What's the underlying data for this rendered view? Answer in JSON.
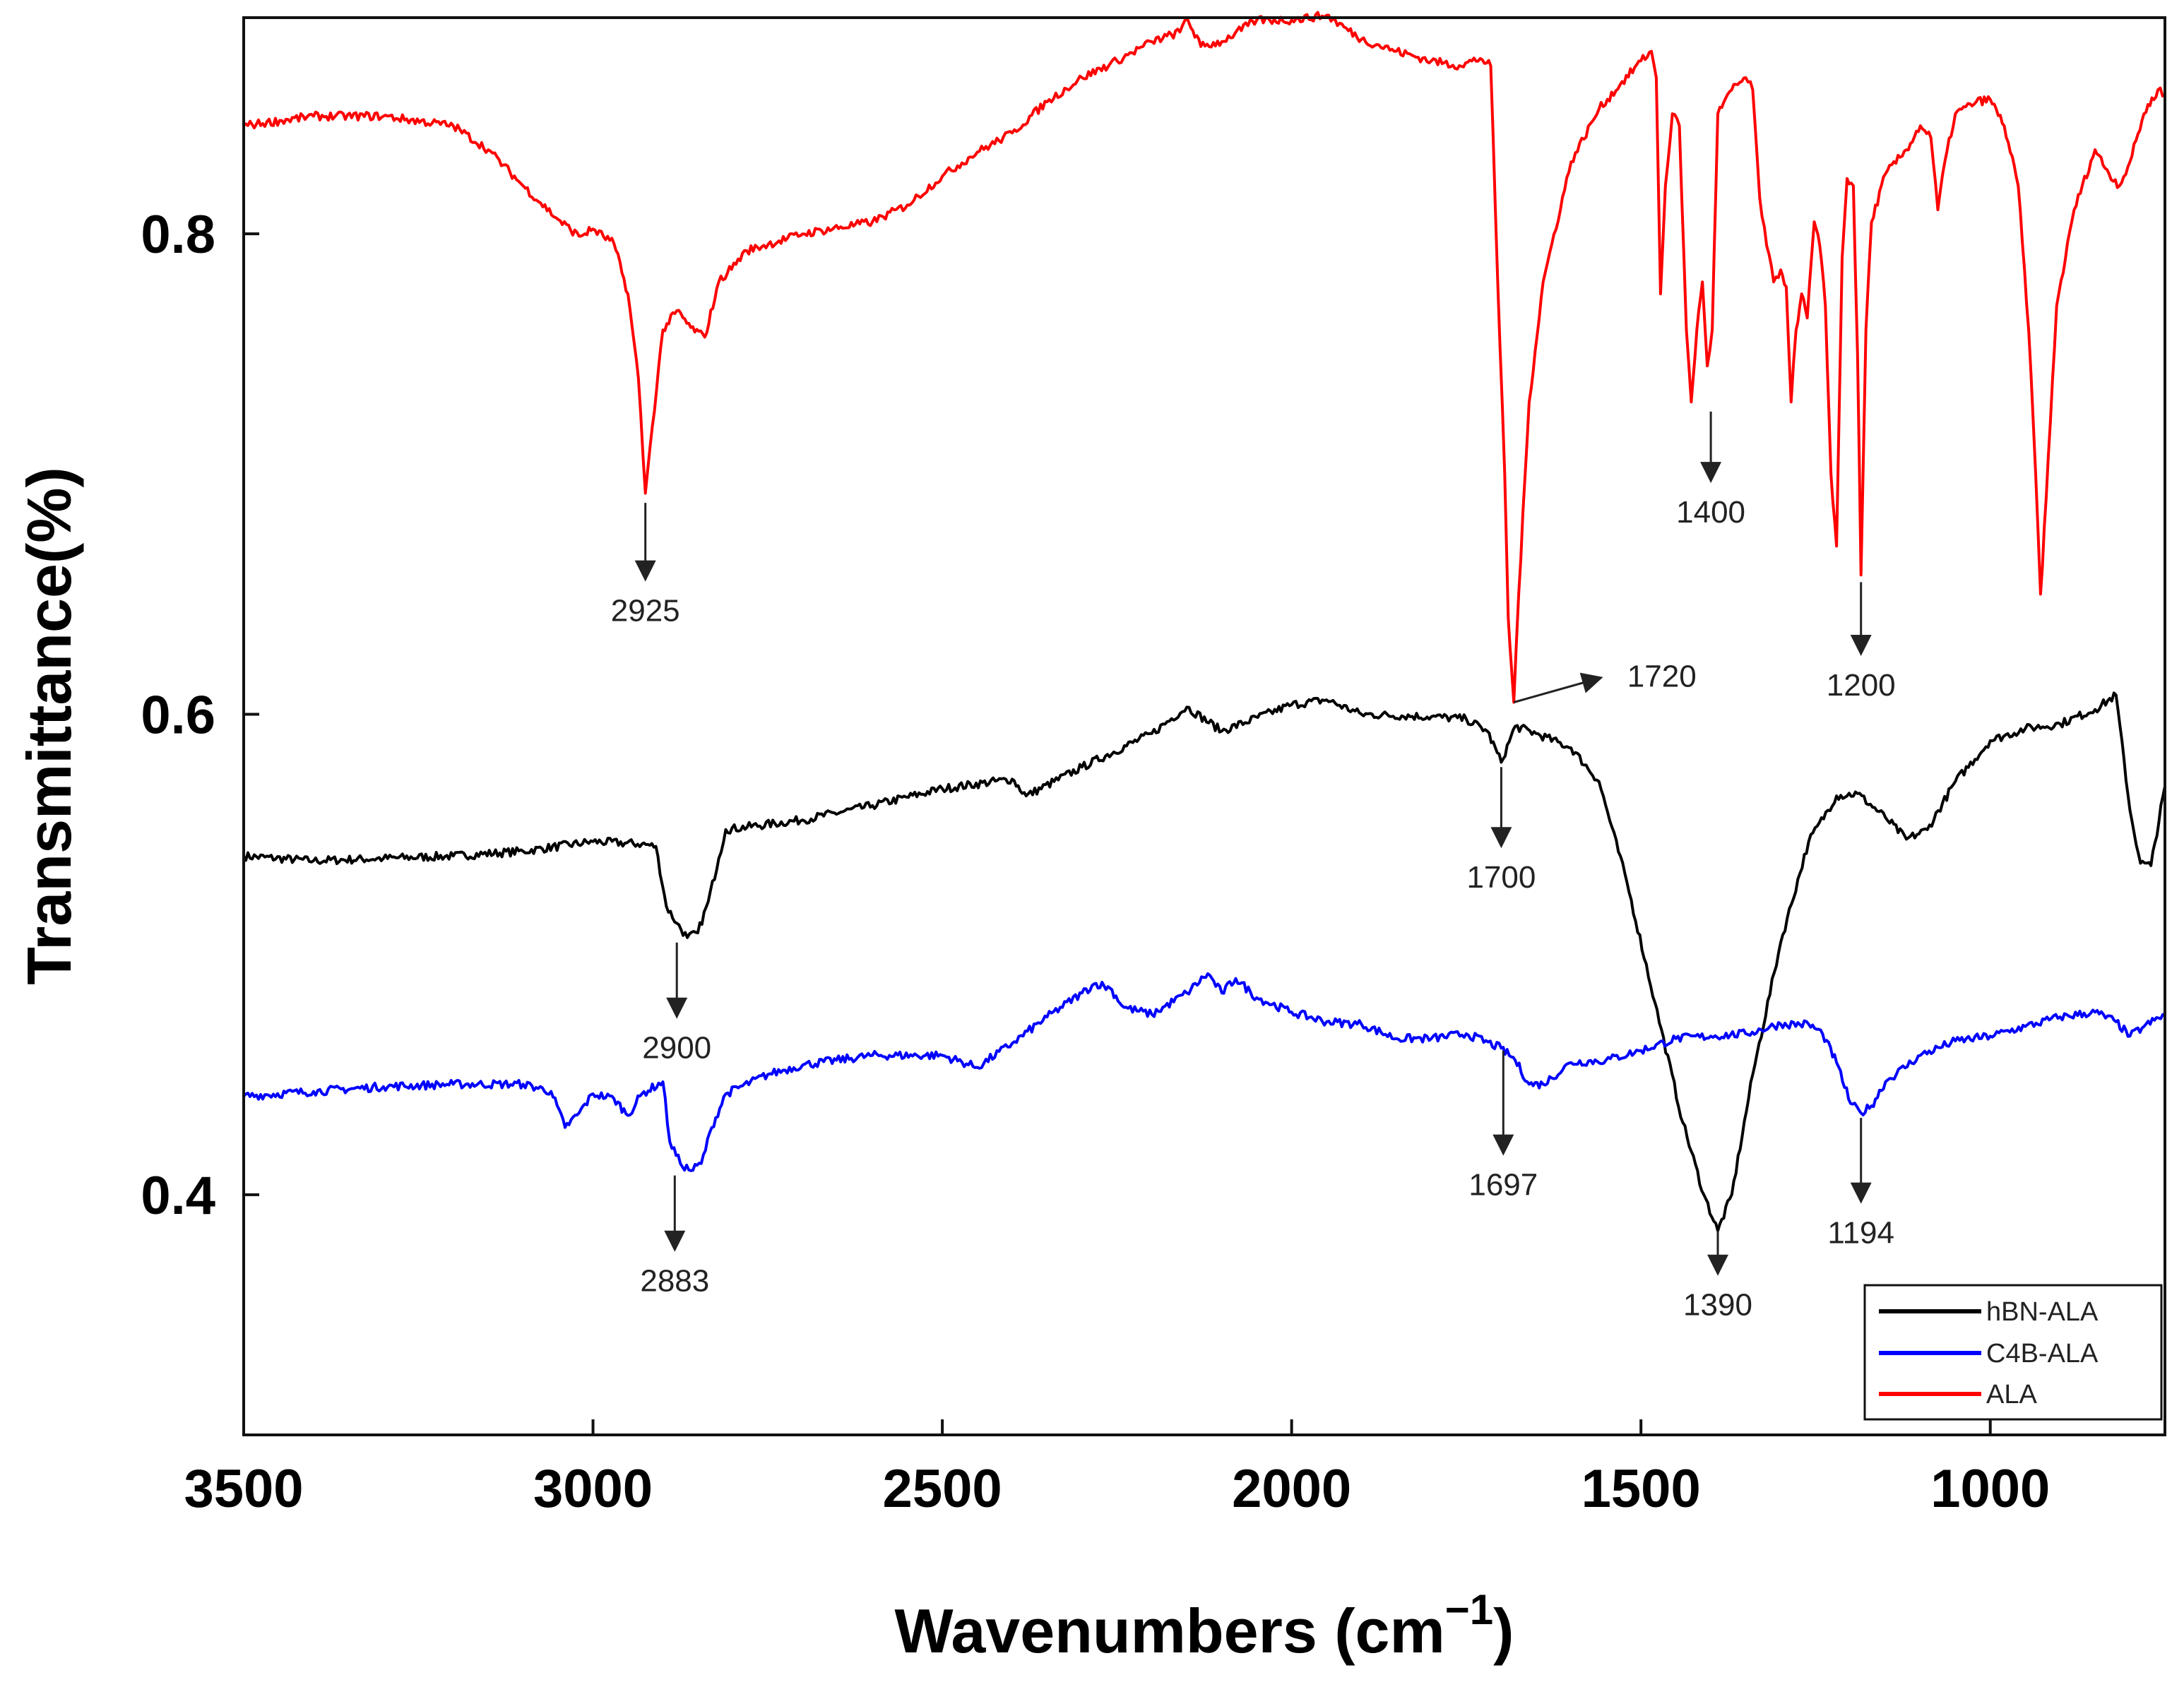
{
  "chart_data": {
    "type": "line",
    "title": "",
    "xlabel": "Wavenumbers (cm",
    "xlabel_superscript": "−1",
    "xlabel_close": ")",
    "ylabel": "Transmittance(%)",
    "xlim": [
      3500,
      750
    ],
    "ylim": [
      0.3,
      0.89
    ],
    "x_ticks": [
      3500,
      3000,
      2500,
      2000,
      1500,
      1000
    ],
    "x_tick_labels": [
      "3500",
      "3000",
      "2500",
      "2000",
      "1500",
      "1000"
    ],
    "y_ticks": [
      0.4,
      0.6,
      0.8
    ],
    "y_tick_labels": [
      "0.4",
      "0.6",
      "0.8"
    ],
    "grid": false,
    "legend_position": "bottom-right",
    "series": [
      {
        "name": "hBN-ALA",
        "color": "#000000",
        "points": [
          [
            3500,
            0.541
          ],
          [
            3400,
            0.539
          ],
          [
            3300,
            0.54
          ],
          [
            3200,
            0.541
          ],
          [
            3100,
            0.543
          ],
          [
            3000,
            0.547
          ],
          [
            2930,
            0.546
          ],
          [
            2910,
            0.545
          ],
          [
            2895,
            0.52
          ],
          [
            2880,
            0.513
          ],
          [
            2865,
            0.507
          ],
          [
            2850,
            0.509
          ],
          [
            2835,
            0.522
          ],
          [
            2820,
            0.54
          ],
          [
            2810,
            0.552
          ],
          [
            2700,
            0.556
          ],
          [
            2600,
            0.562
          ],
          [
            2500,
            0.569
          ],
          [
            2400,
            0.573
          ],
          [
            2380,
            0.566
          ],
          [
            2300,
            0.578
          ],
          [
            2200,
            0.592
          ],
          [
            2150,
            0.603
          ],
          [
            2100,
            0.593
          ],
          [
            2000,
            0.604
          ],
          [
            1950,
            0.606
          ],
          [
            1900,
            0.6
          ],
          [
            1800,
            0.599
          ],
          [
            1750,
            0.598
          ],
          [
            1720,
            0.593
          ],
          [
            1700,
            0.58
          ],
          [
            1680,
            0.595
          ],
          [
            1650,
            0.592
          ],
          [
            1600,
            0.586
          ],
          [
            1560,
            0.572
          ],
          [
            1520,
            0.53
          ],
          [
            1480,
            0.48
          ],
          [
            1440,
            0.43
          ],
          [
            1410,
            0.4
          ],
          [
            1390,
            0.385
          ],
          [
            1370,
            0.4
          ],
          [
            1340,
            0.45
          ],
          [
            1300,
            0.505
          ],
          [
            1260,
            0.547
          ],
          [
            1220,
            0.566
          ],
          [
            1190,
            0.567
          ],
          [
            1150,
            0.557
          ],
          [
            1120,
            0.548
          ],
          [
            1090,
            0.552
          ],
          [
            1050,
            0.572
          ],
          [
            1000,
            0.589
          ],
          [
            950,
            0.594
          ],
          [
            900,
            0.596
          ],
          [
            850,
            0.602
          ],
          [
            820,
            0.608
          ],
          [
            800,
            0.56
          ],
          [
            785,
            0.538
          ],
          [
            770,
            0.537
          ],
          [
            750,
            0.57
          ]
        ]
      },
      {
        "name": "C4B-ALA",
        "color": "#0000ff",
        "points": [
          [
            3500,
            0.441
          ],
          [
            3400,
            0.443
          ],
          [
            3300,
            0.445
          ],
          [
            3200,
            0.446
          ],
          [
            3100,
            0.446
          ],
          [
            3060,
            0.443
          ],
          [
            3040,
            0.428
          ],
          [
            3020,
            0.434
          ],
          [
            3000,
            0.442
          ],
          [
            2970,
            0.44
          ],
          [
            2950,
            0.433
          ],
          [
            2930,
            0.442
          ],
          [
            2900,
            0.447
          ],
          [
            2890,
            0.422
          ],
          [
            2875,
            0.413
          ],
          [
            2860,
            0.41
          ],
          [
            2845,
            0.413
          ],
          [
            2830,
            0.428
          ],
          [
            2810,
            0.442
          ],
          [
            2750,
            0.45
          ],
          [
            2700,
            0.454
          ],
          [
            2600,
            0.458
          ],
          [
            2500,
            0.458
          ],
          [
            2450,
            0.453
          ],
          [
            2400,
            0.463
          ],
          [
            2350,
            0.474
          ],
          [
            2300,
            0.484
          ],
          [
            2280,
            0.488
          ],
          [
            2260,
            0.486
          ],
          [
            2240,
            0.478
          ],
          [
            2200,
            0.475
          ],
          [
            2150,
            0.484
          ],
          [
            2120,
            0.492
          ],
          [
            2100,
            0.484
          ],
          [
            2080,
            0.49
          ],
          [
            2050,
            0.482
          ],
          [
            2000,
            0.476
          ],
          [
            1950,
            0.472
          ],
          [
            1900,
            0.471
          ],
          [
            1850,
            0.465
          ],
          [
            1800,
            0.465
          ],
          [
            1750,
            0.467
          ],
          [
            1700,
            0.461
          ],
          [
            1680,
            0.456
          ],
          [
            1660,
            0.446
          ],
          [
            1640,
            0.446
          ],
          [
            1600,
            0.455
          ],
          [
            1550,
            0.456
          ],
          [
            1500,
            0.46
          ],
          [
            1450,
            0.465
          ],
          [
            1400,
            0.466
          ],
          [
            1350,
            0.467
          ],
          [
            1300,
            0.471
          ],
          [
            1260,
            0.471
          ],
          [
            1240,
            0.467
          ],
          [
            1220,
            0.455
          ],
          [
            1200,
            0.438
          ],
          [
            1185,
            0.434
          ],
          [
            1170,
            0.437
          ],
          [
            1150,
            0.447
          ],
          [
            1100,
            0.458
          ],
          [
            1050,
            0.464
          ],
          [
            1000,
            0.466
          ],
          [
            950,
            0.47
          ],
          [
            900,
            0.474
          ],
          [
            850,
            0.476
          ],
          [
            820,
            0.472
          ],
          [
            800,
            0.466
          ],
          [
            780,
            0.47
          ],
          [
            750,
            0.475
          ]
        ]
      },
      {
        "name": "ALA",
        "color": "#ff0000",
        "points": [
          [
            3500,
            0.845
          ],
          [
            3400,
            0.849
          ],
          [
            3300,
            0.849
          ],
          [
            3200,
            0.845
          ],
          [
            3150,
            0.835
          ],
          [
            3100,
            0.82
          ],
          [
            3050,
            0.806
          ],
          [
            3020,
            0.799
          ],
          [
            3000,
            0.802
          ],
          [
            2970,
            0.796
          ],
          [
            2950,
            0.775
          ],
          [
            2935,
            0.74
          ],
          [
            2925,
            0.692
          ],
          [
            2915,
            0.72
          ],
          [
            2900,
            0.76
          ],
          [
            2880,
            0.768
          ],
          [
            2860,
            0.761
          ],
          [
            2840,
            0.757
          ],
          [
            2820,
            0.78
          ],
          [
            2780,
            0.793
          ],
          [
            2700,
            0.8
          ],
          [
            2600,
            0.805
          ],
          [
            2550,
            0.812
          ],
          [
            2500,
            0.824
          ],
          [
            2450,
            0.834
          ],
          [
            2400,
            0.842
          ],
          [
            2350,
            0.855
          ],
          [
            2300,
            0.865
          ],
          [
            2250,
            0.872
          ],
          [
            2200,
            0.88
          ],
          [
            2160,
            0.884
          ],
          [
            2150,
            0.89
          ],
          [
            2130,
            0.878
          ],
          [
            2100,
            0.88
          ],
          [
            2050,
            0.889
          ],
          [
            2000,
            0.889
          ],
          [
            1950,
            0.891
          ],
          [
            1900,
            0.881
          ],
          [
            1850,
            0.876
          ],
          [
            1800,
            0.872
          ],
          [
            1760,
            0.87
          ],
          [
            1730,
            0.873
          ],
          [
            1715,
            0.87
          ],
          [
            1705,
            0.78
          ],
          [
            1695,
            0.7
          ],
          [
            1690,
            0.64
          ],
          [
            1682,
            0.605
          ],
          [
            1675,
            0.65
          ],
          [
            1660,
            0.73
          ],
          [
            1640,
            0.78
          ],
          [
            1600,
            0.83
          ],
          [
            1560,
            0.852
          ],
          [
            1530,
            0.862
          ],
          [
            1500,
            0.872
          ],
          [
            1485,
            0.876
          ],
          [
            1478,
            0.865
          ],
          [
            1472,
            0.775
          ],
          [
            1465,
            0.82
          ],
          [
            1455,
            0.85
          ],
          [
            1445,
            0.845
          ],
          [
            1435,
            0.76
          ],
          [
            1428,
            0.73
          ],
          [
            1420,
            0.76
          ],
          [
            1412,
            0.78
          ],
          [
            1405,
            0.745
          ],
          [
            1398,
            0.76
          ],
          [
            1390,
            0.85
          ],
          [
            1370,
            0.86
          ],
          [
            1350,
            0.865
          ],
          [
            1340,
            0.86
          ],
          [
            1330,
            0.815
          ],
          [
            1320,
            0.795
          ],
          [
            1310,
            0.78
          ],
          [
            1300,
            0.785
          ],
          [
            1292,
            0.778
          ],
          [
            1285,
            0.73
          ],
          [
            1278,
            0.76
          ],
          [
            1270,
            0.775
          ],
          [
            1262,
            0.765
          ],
          [
            1252,
            0.805
          ],
          [
            1244,
            0.795
          ],
          [
            1236,
            0.77
          ],
          [
            1228,
            0.7
          ],
          [
            1220,
            0.67
          ],
          [
            1212,
            0.79
          ],
          [
            1205,
            0.823
          ],
          [
            1196,
            0.82
          ],
          [
            1190,
            0.75
          ],
          [
            1185,
            0.658
          ],
          [
            1178,
            0.76
          ],
          [
            1170,
            0.805
          ],
          [
            1150,
            0.825
          ],
          [
            1120,
            0.835
          ],
          [
            1100,
            0.845
          ],
          [
            1085,
            0.84
          ],
          [
            1075,
            0.81
          ],
          [
            1065,
            0.83
          ],
          [
            1050,
            0.85
          ],
          [
            1020,
            0.855
          ],
          [
            1000,
            0.856
          ],
          [
            980,
            0.845
          ],
          [
            960,
            0.82
          ],
          [
            945,
            0.76
          ],
          [
            935,
            0.7
          ],
          [
            928,
            0.65
          ],
          [
            920,
            0.69
          ],
          [
            905,
            0.77
          ],
          [
            880,
            0.81
          ],
          [
            850,
            0.835
          ],
          [
            830,
            0.825
          ],
          [
            815,
            0.82
          ],
          [
            800,
            0.83
          ],
          [
            780,
            0.85
          ],
          [
            760,
            0.86
          ],
          [
            750,
            0.858
          ]
        ]
      }
    ],
    "annotations": [
      {
        "label": "2925",
        "x": 2925,
        "from_y": 0.688,
        "to_y": 0.657,
        "style": "down"
      },
      {
        "label": "1720",
        "x": 1682,
        "from_y": 0.605,
        "to_x": 1560,
        "to_y": 0.615,
        "style": "diagonal"
      },
      {
        "label": "1400",
        "x": 1400,
        "from_y": 0.726,
        "to_y": 0.698,
        "style": "down"
      },
      {
        "label": "1200",
        "x": 1185,
        "from_y": 0.655,
        "to_y": 0.626,
        "style": "down"
      },
      {
        "label": "1700",
        "x": 1700,
        "from_y": 0.578,
        "to_y": 0.546,
        "style": "down"
      },
      {
        "label": "2900",
        "x": 2880,
        "from_y": 0.505,
        "to_y": 0.475,
        "style": "down"
      },
      {
        "label": "1697",
        "x": 1697,
        "from_y": 0.46,
        "to_y": 0.418,
        "style": "down"
      },
      {
        "label": "2883",
        "x": 2883,
        "from_y": 0.408,
        "to_y": 0.378,
        "style": "down"
      },
      {
        "label": "1390",
        "x": 1390,
        "from_y": 0.385,
        "to_y": 0.368,
        "style": "down"
      },
      {
        "label": "1194",
        "x": 1185,
        "from_y": 0.432,
        "to_y": 0.398,
        "style": "down"
      }
    ]
  }
}
